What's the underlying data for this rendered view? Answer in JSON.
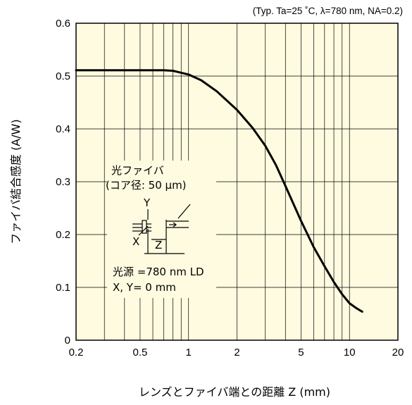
{
  "chart_data": {
    "type": "line",
    "title": "",
    "conditions": "(Typ. Ta=25 ˚C, λ=780 nm,  NA=0.2)",
    "xlabel": "レンズとファイバ端との距離 Z (mm)",
    "ylabel": "ファイバ結合感度 (A/W)",
    "xscale": "log",
    "xlim": [
      0.2,
      20
    ],
    "ylim": [
      0,
      0.6
    ],
    "x_ticks": [
      0.2,
      0.5,
      1,
      2,
      5,
      10,
      20
    ],
    "x_tick_labels": [
      "0.2",
      "0.5",
      "1",
      "2",
      "5",
      "10",
      "20"
    ],
    "y_ticks": [
      0,
      0.1,
      0.2,
      0.3,
      0.4,
      0.5,
      0.6
    ],
    "y_tick_labels": [
      "0",
      "0.1",
      "0.2",
      "0.3",
      "0.4",
      "0.5",
      "0.6"
    ],
    "grid": true,
    "background_color": "#fffbe0",
    "line_color": "#000000",
    "series": [
      {
        "x": [
          0.2,
          0.3,
          0.5,
          0.7,
          0.8,
          1.0,
          1.2,
          1.5,
          2.0,
          2.5,
          3.0,
          3.5,
          4.0,
          5.0,
          6.0,
          7.0,
          8.0,
          9.0,
          10.0,
          11.0,
          12.0
        ],
        "y": [
          0.511,
          0.511,
          0.511,
          0.511,
          0.51,
          0.503,
          0.492,
          0.471,
          0.436,
          0.402,
          0.368,
          0.331,
          0.292,
          0.226,
          0.176,
          0.14,
          0.11,
          0.087,
          0.07,
          0.061,
          0.054
        ]
      }
    ],
    "inset": {
      "title_line1": "光ファイバ",
      "title_line2": "(コア径:  50 μm)",
      "axis_y": "Y",
      "axis_x": "X",
      "axis_z": "Z",
      "source_line1": "光源 =780 nm LD",
      "source_line2": "X, Y= 0 mm"
    }
  }
}
